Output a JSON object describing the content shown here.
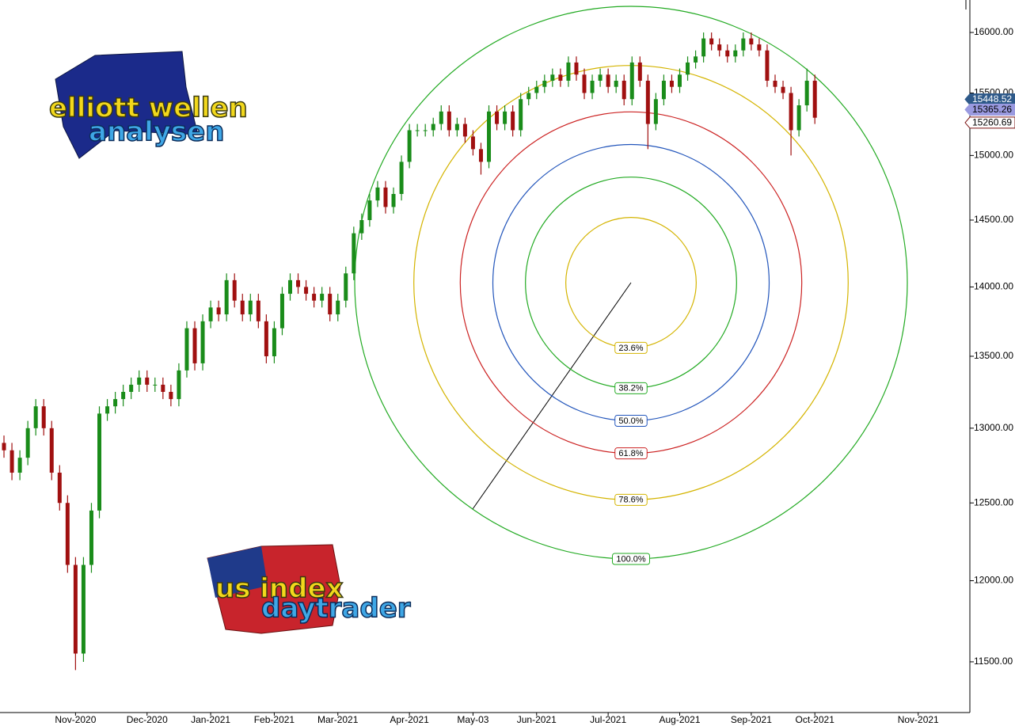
{
  "chart_data": {
    "type": "candlestick",
    "categories": [
      null,
      null,
      null,
      null,
      null,
      null,
      null,
      null,
      null,
      "Nov-2020",
      null,
      null,
      null,
      null,
      null,
      null,
      null,
      null,
      "Dec-2020",
      null,
      null,
      null,
      null,
      null,
      null,
      null,
      "Jan-2021",
      null,
      null,
      null,
      null,
      null,
      null,
      null,
      "Feb-2021",
      null,
      null,
      null,
      null,
      null,
      null,
      null,
      "Mar-2021",
      null,
      null,
      null,
      null,
      null,
      null,
      null,
      null,
      "Apr-2021",
      null,
      null,
      null,
      null,
      null,
      null,
      null,
      "May-03",
      null,
      null,
      null,
      null,
      null,
      null,
      null,
      "Jun-2021",
      null,
      null,
      null,
      null,
      null,
      null,
      null,
      null,
      "Jul-2021",
      null,
      null,
      null,
      null,
      null,
      null,
      null,
      null,
      "Aug-2021",
      null,
      null,
      null,
      null,
      null,
      null,
      null,
      null,
      "Sep-2021",
      null,
      null,
      null,
      null,
      null,
      null,
      null,
      "Oct-2021",
      null,
      null,
      null,
      null,
      null,
      null,
      null,
      null,
      null,
      null,
      null,
      null,
      "Nov-2021",
      null,
      null,
      null,
      null,
      null,
      null
    ],
    "open": [
      12900,
      12850,
      12700,
      12800,
      13000,
      13150,
      13000,
      12700,
      12500,
      12100,
      11550,
      12100,
      12450,
      13100,
      13150,
      13200,
      13250,
      13300,
      13350,
      13300,
      13300,
      13250,
      13200,
      13400,
      13700,
      13450,
      13750,
      13850,
      13800,
      14050,
      13900,
      13800,
      13900,
      13750,
      13500,
      13700,
      13950,
      14050,
      14000,
      13950,
      13900,
      13950,
      13800,
      13900,
      14100,
      14400,
      14500,
      14650,
      14750,
      14600,
      14700,
      14950,
      15200,
      15200,
      15200,
      15250,
      15350,
      15200,
      15250,
      15150,
      15050,
      14950,
      15350,
      15250,
      15350,
      15200,
      15450,
      15500,
      15550,
      15600,
      15650,
      15600,
      15750,
      15650,
      15500,
      15600,
      15650,
      15550,
      15600,
      15450,
      15750,
      15600,
      15250,
      15450,
      15600,
      15550,
      15650,
      15750,
      15800,
      15950,
      15900,
      15850,
      15800,
      15850,
      15950,
      15900,
      15850,
      15600,
      15550,
      15500,
      15200,
      15400,
      15600,
      null,
      null,
      null,
      null,
      null,
      null,
      null,
      null,
      null,
      null,
      null,
      null,
      null,
      null,
      null,
      null,
      null,
      null,
      null
    ],
    "high": [
      12950,
      12900,
      12850,
      13050,
      13200,
      13200,
      13050,
      12750,
      12550,
      12150,
      12150,
      12500,
      13150,
      13200,
      13250,
      13300,
      13350,
      13400,
      13400,
      13350,
      13350,
      13300,
      13450,
      13750,
      13750,
      13800,
      13900,
      13900,
      14100,
      14100,
      13950,
      13950,
      13950,
      13800,
      13750,
      14000,
      14100,
      14100,
      14050,
      14000,
      14000,
      14000,
      13950,
      14150,
      14450,
      14550,
      14700,
      14800,
      14800,
      14750,
      15000,
      15250,
      15250,
      15250,
      15300,
      15400,
      15400,
      15300,
      15300,
      15200,
      15100,
      15400,
      15400,
      15400,
      15400,
      15500,
      15550,
      15600,
      15650,
      15700,
      15700,
      15800,
      15800,
      15700,
      15650,
      15700,
      15700,
      15650,
      15650,
      15800,
      15800,
      15650,
      15500,
      15650,
      15650,
      15700,
      15800,
      15850,
      16000,
      16000,
      15950,
      15900,
      15900,
      16000,
      16000,
      15950,
      15900,
      15650,
      15600,
      15550,
      15450,
      15700,
      15650,
      null,
      null,
      null,
      null,
      null,
      null,
      null,
      null,
      null,
      null,
      null,
      null,
      null,
      null,
      null,
      null,
      null,
      null,
      null
    ],
    "low": [
      12800,
      12650,
      12650,
      12750,
      12950,
      12950,
      12650,
      12450,
      12050,
      11450,
      11500,
      12050,
      12400,
      13050,
      13100,
      13150,
      13200,
      13250,
      13250,
      13250,
      13200,
      13150,
      13150,
      13350,
      13400,
      13400,
      13700,
      13750,
      13750,
      13850,
      13750,
      13750,
      13700,
      13450,
      13450,
      13650,
      13900,
      13950,
      13900,
      13850,
      13850,
      13750,
      13750,
      13850,
      14050,
      14350,
      14450,
      14600,
      14550,
      14550,
      14650,
      14900,
      15150,
      15150,
      15150,
      15200,
      15150,
      15150,
      15100,
      15000,
      14850,
      14900,
      15200,
      15200,
      15150,
      15150,
      15400,
      15450,
      15500,
      15550,
      15550,
      15550,
      15600,
      15450,
      15450,
      15550,
      15500,
      15500,
      15400,
      15400,
      15550,
      15050,
      15200,
      15400,
      15500,
      15500,
      15600,
      15700,
      15750,
      15850,
      15800,
      15750,
      15750,
      15800,
      15850,
      15800,
      15550,
      15500,
      15450,
      15000,
      15150,
      15350,
      15250,
      null,
      null,
      null,
      null,
      null,
      null,
      null,
      null,
      null,
      null,
      null,
      null,
      null,
      null,
      null,
      null,
      null,
      null,
      null
    ],
    "close": [
      12850,
      12700,
      12800,
      13000,
      13150,
      13000,
      12700,
      12500,
      12100,
      11550,
      12100,
      12450,
      13100,
      13150,
      13200,
      13250,
      13300,
      13350,
      13300,
      13300,
      13250,
      13200,
      13400,
      13700,
      13450,
      13750,
      13850,
      13800,
      14050,
      13900,
      13800,
      13900,
      13750,
      13500,
      13700,
      13950,
      14050,
      14000,
      13950,
      13900,
      13950,
      13800,
      13900,
      14100,
      14400,
      14500,
      14650,
      14750,
      14600,
      14700,
      14950,
      15200,
      15200,
      15200,
      15250,
      15350,
      15200,
      15250,
      15150,
      15050,
      14950,
      15350,
      15250,
      15350,
      15200,
      15450,
      15500,
      15550,
      15600,
      15650,
      15600,
      15750,
      15650,
      15500,
      15600,
      15650,
      15550,
      15600,
      15450,
      15750,
      15600,
      15250,
      15450,
      15600,
      15550,
      15650,
      15750,
      15800,
      15950,
      15900,
      15850,
      15800,
      15850,
      15950,
      15900,
      15850,
      15600,
      15550,
      15500,
      15200,
      15400,
      15600,
      15300,
      null,
      null,
      null,
      null,
      null,
      null,
      null,
      null,
      null,
      null,
      null,
      null,
      null,
      null,
      null,
      null,
      null,
      null,
      null
    ],
    "up_color": "#1a8c1a",
    "down_color": "#a01010",
    "log_scale": true,
    "ylim": [
      11198,
      16275
    ],
    "yticks": [
      {
        "value": 11500,
        "label": "11500.00"
      },
      {
        "value": 12000,
        "label": "12000.00"
      },
      {
        "value": 12500,
        "label": "12500.00"
      },
      {
        "value": 13000,
        "label": "13000.00"
      },
      {
        "value": 13500,
        "label": "13500.00"
      },
      {
        "value": 14000,
        "label": "14000.00"
      },
      {
        "value": 14500,
        "label": "14500.00"
      },
      {
        "value": 15000,
        "label": "15000.00"
      },
      {
        "value": 15500,
        "label": "15500.00"
      },
      {
        "value": 16000,
        "label": "16000.00"
      }
    ],
    "price_markers": [
      {
        "value": 15448.52,
        "color": "#2f5a8a"
      },
      {
        "value": 15365.26,
        "color": "#9a9ae0"
      },
      {
        "value": 15260.69,
        "color": "#ffffff"
      }
    ],
    "fib_circles": [
      {
        "value": 23.6,
        "label": "23.6%",
        "color": "#d4b400"
      },
      {
        "value": 38.2,
        "label": "38.2%",
        "color": "#22aa22"
      },
      {
        "value": 50,
        "label": "50.0%",
        "color": "#2255bb"
      },
      {
        "value": 61.8,
        "label": "61.8%",
        "color": "#cc2222"
      },
      {
        "value": 78.6,
        "label": "78.6%",
        "color": "#d4b400"
      },
      {
        "value": 100,
        "label": "100.0%",
        "color": "#22aa22"
      }
    ],
    "logos": [
      "elliott wellen",
      "analysen",
      "us index",
      "daytrader"
    ]
  }
}
